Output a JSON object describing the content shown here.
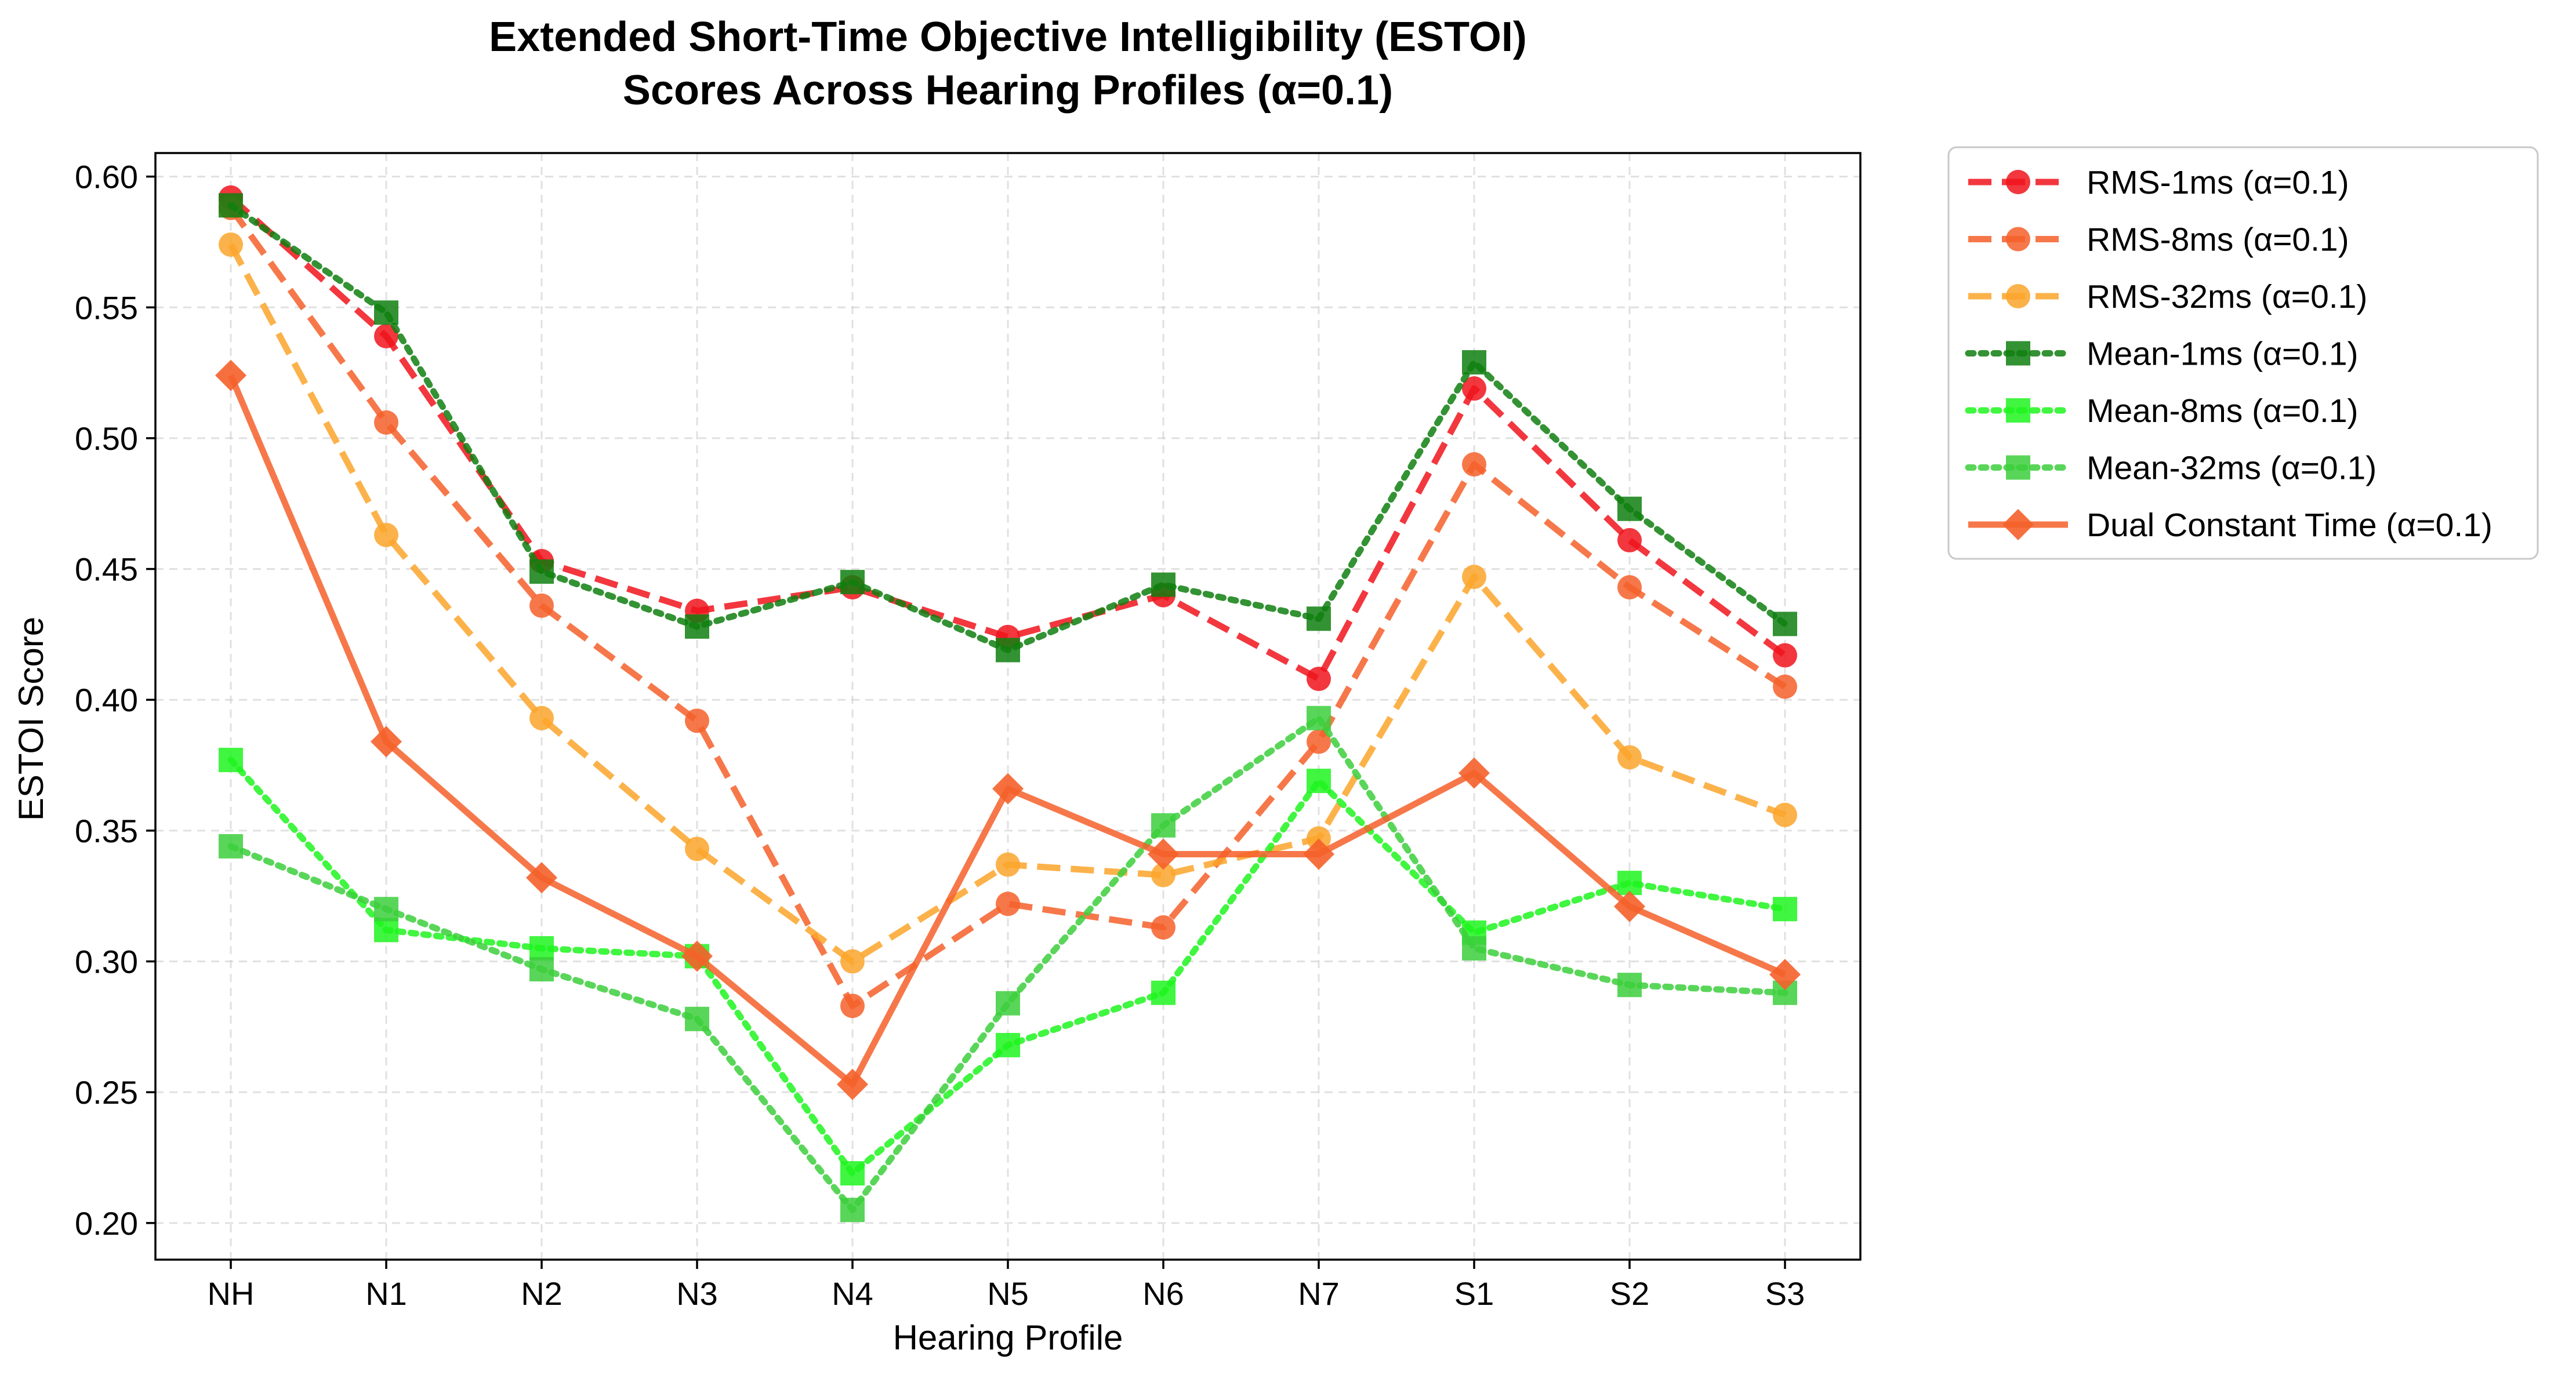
{
  "chart_data": {
    "type": "line",
    "title": "Extended Short-Time Objective Intelligibility (ESTOI)",
    "subtitle": "Scores Across Hearing Profiles (α=0.1)",
    "xlabel": "Hearing Profile",
    "ylabel": "ESTOI Score",
    "categories": [
      "NH",
      "N1",
      "N2",
      "N3",
      "N4",
      "N5",
      "N6",
      "N7",
      "S1",
      "S2",
      "S3"
    ],
    "ylim": [
      0.186,
      0.609
    ],
    "yticks": [
      "0.20",
      "0.25",
      "0.30",
      "0.35",
      "0.40",
      "0.45",
      "0.50",
      "0.55",
      "0.60"
    ],
    "grid": true,
    "legend_position": "outside-right",
    "series": [
      {
        "name": "RMS-1ms (α=0.1)",
        "color": "#f0141c",
        "line": "dashed",
        "marker": "circle",
        "values": [
          0.592,
          0.539,
          0.453,
          0.434,
          0.443,
          0.424,
          0.44,
          0.408,
          0.519,
          0.461,
          0.417
        ]
      },
      {
        "name": "RMS-8ms (α=0.1)",
        "color": "#f5602a",
        "line": "dashed",
        "marker": "circle",
        "values": [
          0.588,
          0.506,
          0.436,
          0.392,
          0.283,
          0.322,
          0.313,
          0.384,
          0.49,
          0.443,
          0.405
        ]
      },
      {
        "name": "RMS-32ms (α=0.1)",
        "color": "#fba52a",
        "line": "dashed",
        "marker": "circle",
        "values": [
          0.574,
          0.463,
          0.393,
          0.343,
          0.3,
          0.337,
          0.333,
          0.347,
          0.447,
          0.378,
          0.356
        ]
      },
      {
        "name": "Mean-1ms (α=0.1)",
        "color": "#0f7f0f",
        "line": "dotted",
        "marker": "square",
        "values": [
          0.589,
          0.548,
          0.449,
          0.428,
          0.445,
          0.419,
          0.444,
          0.431,
          0.529,
          0.473,
          0.429
        ]
      },
      {
        "name": "Mean-8ms (α=0.1)",
        "color": "#1ff51f",
        "line": "dotted",
        "marker": "square",
        "values": [
          0.377,
          0.312,
          0.305,
          0.302,
          0.219,
          0.268,
          0.288,
          0.369,
          0.311,
          0.33,
          0.32
        ]
      },
      {
        "name": "Mean-32ms (α=0.1)",
        "color": "#3ccf3c",
        "line": "dotted",
        "marker": "square",
        "values": [
          0.344,
          0.32,
          0.297,
          0.278,
          0.205,
          0.284,
          0.352,
          0.393,
          0.305,
          0.291,
          0.288
        ]
      },
      {
        "name": "Dual Constant Time (α=0.1)",
        "color": "#f5602a",
        "line": "solid",
        "marker": "diamond",
        "values": [
          0.524,
          0.384,
          0.332,
          0.302,
          0.253,
          0.366,
          0.341,
          0.341,
          0.372,
          0.321,
          0.295
        ]
      }
    ]
  }
}
